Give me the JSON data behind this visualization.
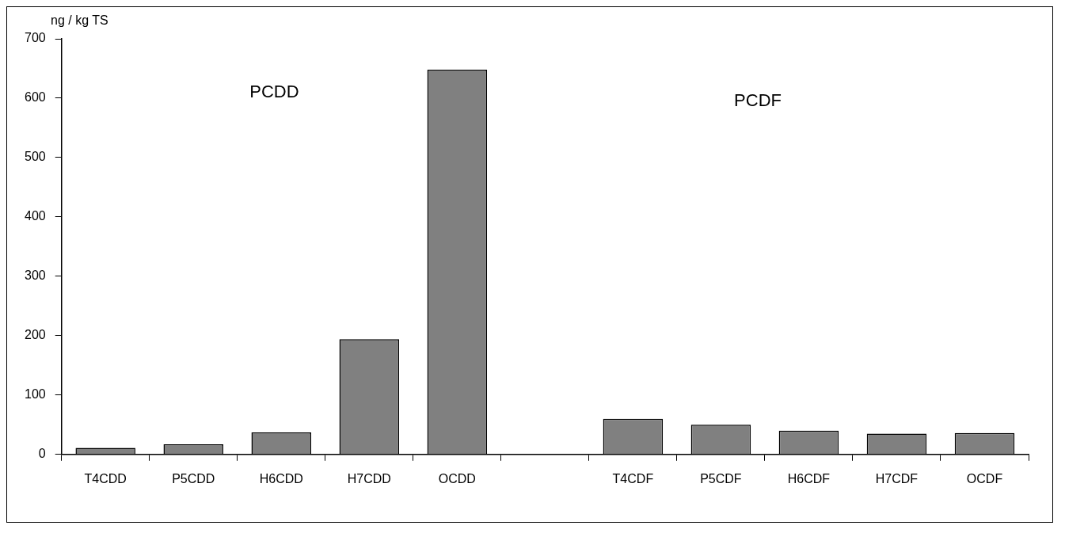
{
  "chart_data": {
    "type": "bar",
    "ylabel": "ng / kg TS",
    "categories": [
      "T4CDD",
      "P5CDD",
      "H6CDD",
      "H7CDD",
      "OCDD",
      null,
      "T4CDF",
      "P5CDF",
      "H6CDF",
      "H7CDF",
      "OCDF"
    ],
    "values": [
      11,
      17,
      37,
      194,
      648,
      null,
      60,
      50,
      40,
      35,
      36
    ],
    "color": "#808080",
    "ylim": [
      0,
      700
    ],
    "yticks": [
      0,
      100,
      200,
      300,
      400,
      500,
      600,
      700
    ],
    "grid": false,
    "legend": false,
    "annotations": [
      "PCDD",
      "PCDF"
    ]
  }
}
